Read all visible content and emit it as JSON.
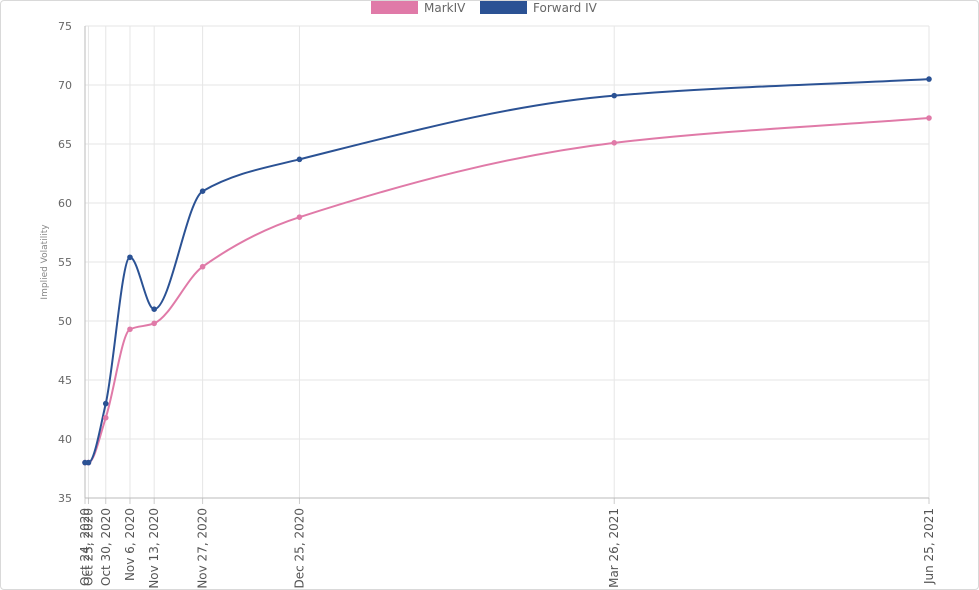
{
  "chart_data": {
    "type": "line",
    "title": "",
    "xlabel": "",
    "ylabel": "Implied Volatility",
    "ylim": [
      35,
      75
    ],
    "yticks": [
      35,
      40,
      45,
      50,
      55,
      60,
      65,
      70,
      75
    ],
    "grid": true,
    "legend_position": "top-center",
    "x": [
      "Oct 24, 2020",
      "Oct 25, 2020",
      "Oct 30, 2020",
      "Nov 6, 2020",
      "Nov 13, 2020",
      "Nov 27, 2020",
      "Dec 25, 2020",
      "Mar 26, 2021",
      "Jun 25, 2021"
    ],
    "x_day_offsets": [
      0,
      1,
      6,
      13,
      20,
      34,
      62,
      153,
      244
    ],
    "series": [
      {
        "name": "MarkIV",
        "color": "#e07aa8",
        "values": [
          38.0,
          38.0,
          41.8,
          49.3,
          49.8,
          54.6,
          58.8,
          65.1,
          67.2
        ]
      },
      {
        "name": "Forward IV",
        "color": "#2b5294",
        "values": [
          38.0,
          38.0,
          43.0,
          55.4,
          51.0,
          61.0,
          63.7,
          69.1,
          70.5
        ]
      }
    ]
  }
}
